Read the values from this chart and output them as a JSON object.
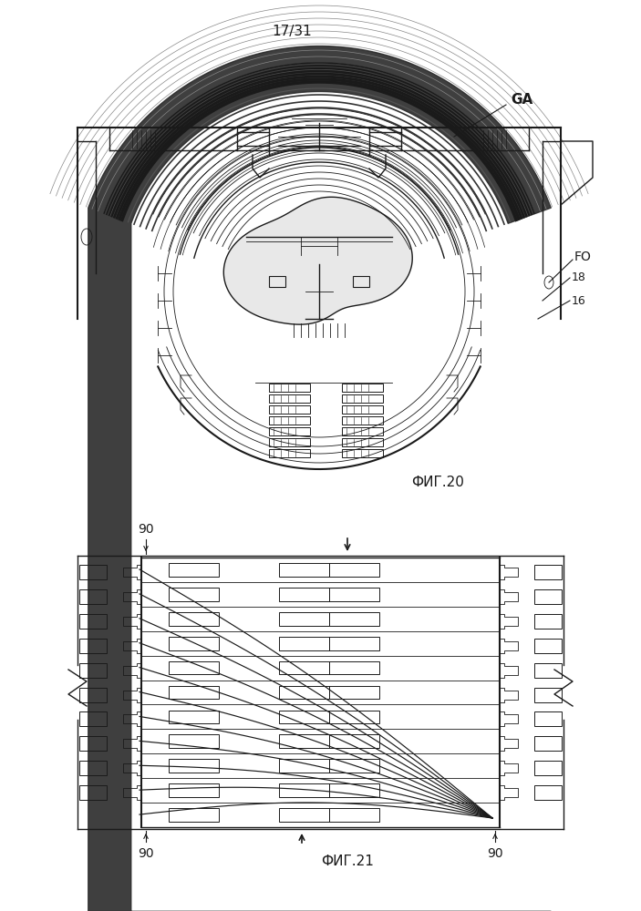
{
  "page_label": "17/31",
  "fig20_label": "ФИГ.20",
  "fig21_label": "ФИГ.21",
  "label_GA": "GA",
  "label_FO": "FO",
  "label_18": "18",
  "label_16": "16",
  "label_90_top": "90",
  "label_90_bl": "90",
  "label_90_br": "90",
  "bg_color": "#ffffff",
  "lc": "#1a1a1a"
}
